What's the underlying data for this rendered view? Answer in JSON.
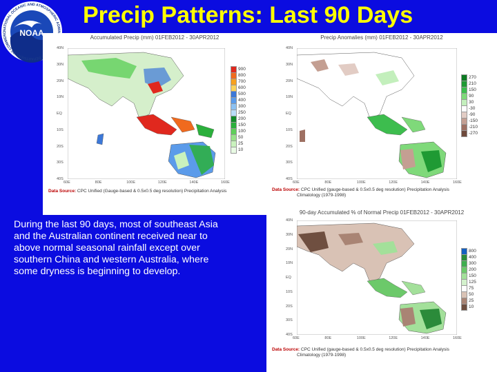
{
  "slide": {
    "title": "Precip Patterns: Last 90 Days",
    "description_lines": [
      "During the last 90 days, most of southeast Asia",
      "and the Australian continent received near to",
      "above normal seasonal rainfall except over",
      "southern China and western Australia, where",
      "some dryness is beginning to develop."
    ]
  },
  "logo": {
    "text": "NOAA",
    "ring_text": "NATIONAL OCEANIC AND ATMOSPHERIC ADMINISTRATION · U.S. DEPARTMENT OF COMMERCE"
  },
  "maps": {
    "accumulated": {
      "title": "Accumulated Precip (mm) 01FEB2012 - 30APR2012",
      "source_label": "Data Source:",
      "source_lines": [
        "CPC Unified (Gauge-based & 0.5x0.5 deg resolution) Precipitation Analysis"
      ],
      "legend": [
        {
          "value": "900",
          "color": "#e0281e"
        },
        {
          "value": "800",
          "color": "#f06a1e"
        },
        {
          "value": "700",
          "color": "#f7a11e"
        },
        {
          "value": "600",
          "color": "#fbd35a"
        },
        {
          "value": "500",
          "color": "#3c78d8"
        },
        {
          "value": "400",
          "color": "#5b9bea"
        },
        {
          "value": "300",
          "color": "#8cc1f2"
        },
        {
          "value": "250",
          "color": "#b9dcf7"
        },
        {
          "value": "200",
          "color": "#128a2a"
        },
        {
          "value": "150",
          "color": "#2bb03c"
        },
        {
          "value": "100",
          "color": "#5fcf5a"
        },
        {
          "value": "50",
          "color": "#98e38a"
        },
        {
          "value": "25",
          "color": "#c9f2bd"
        },
        {
          "value": "10",
          "color": "#e9fbe4"
        }
      ]
    },
    "anomaly": {
      "title": "Precip Anomalies (mm) 01FEB2012 - 30APR2012",
      "source_label": "Data Source:",
      "source_lines": [
        "CPC Unified (gauge-based & 0.5x0.5 deg resolution) Precipitation Analysis",
        "Climatology (1979-1998)"
      ],
      "legend": [
        {
          "value": "270",
          "color": "#0c7a22"
        },
        {
          "value": "210",
          "color": "#1f9a34"
        },
        {
          "value": "150",
          "color": "#3dbd4e"
        },
        {
          "value": "90",
          "color": "#7fd97a"
        },
        {
          "value": "30",
          "color": "#c3efbc"
        },
        {
          "value": "-30",
          "color": "#ffffff"
        },
        {
          "value": "-90",
          "color": "#e2ccc4"
        },
        {
          "value": "-150",
          "color": "#c49f92"
        },
        {
          "value": "-210",
          "color": "#9e7062"
        },
        {
          "value": "-270",
          "color": "#6e4a3c"
        }
      ]
    },
    "percent": {
      "title": "90-day Accumulated % of Normal Precip 01FEB2012 - 30APR2012",
      "source_label": "Data Source:",
      "source_lines": [
        "CPC Unified (gauge-based & 0.5x0.5 deg resolution) Precipitation Analysis",
        "Climatology (1979-1998)"
      ],
      "legend": [
        {
          "value": "800",
          "color": "#1560c0"
        },
        {
          "value": "400",
          "color": "#2b8b3a"
        },
        {
          "value": "300",
          "color": "#3fae4f"
        },
        {
          "value": "200",
          "color": "#6cc96a"
        },
        {
          "value": "150",
          "color": "#a3e09a"
        },
        {
          "value": "125",
          "color": "#d3f1cc"
        },
        {
          "value": "75",
          "color": "#ffffff"
        },
        {
          "value": "50",
          "color": "#d9c2b5"
        },
        {
          "value": "25",
          "color": "#a98474"
        },
        {
          "value": "10",
          "color": "#6f4f40"
        }
      ]
    },
    "lat_labels": [
      "40N",
      "30N",
      "20N",
      "10N",
      "EQ",
      "10S",
      "20S",
      "30S",
      "40S"
    ],
    "lon_labels": [
      "60E",
      "80E",
      "100E",
      "120E",
      "140E",
      "160E"
    ]
  }
}
